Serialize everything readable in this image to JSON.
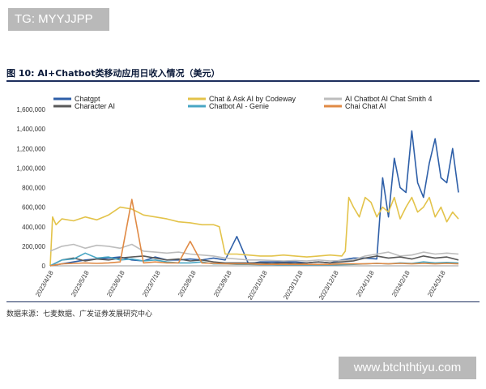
{
  "watermark_top": "TG: MYYJJPP",
  "watermark_bottom": "www.btchthtiyu.com",
  "figure_title": "图 10:  AI+Chatbot类移动应用日收入情况（美元）",
  "source_note": "数据来源：七麦数据、广发证券发展研究中心",
  "chart_data": {
    "type": "line",
    "title": "AI+Chatbot类移动应用日收入情况（美元）",
    "xlabel": "",
    "ylabel": "",
    "ylim": [
      0,
      1600000
    ],
    "y_ticks": [
      0,
      200000,
      400000,
      600000,
      800000,
      1000000,
      1200000,
      1400000,
      1600000
    ],
    "y_tick_labels": [
      "0",
      "200,000",
      "400,000",
      "600,000",
      "800,000",
      "1,000,000",
      "1,200,000",
      "1,400,000",
      "1,600,000"
    ],
    "x_tick_labels": [
      "2023/4/18",
      "2023/5/18",
      "2023/6/18",
      "2023/7/18",
      "2023/8/18",
      "2023/9/18",
      "2023/10/18",
      "2023/11/18",
      "2023/12/18",
      "2024/1/18",
      "2024/2/18",
      "2024/3/18"
    ],
    "x_range_days": [
      0,
      350
    ],
    "legend_position": "top",
    "series": [
      {
        "name": "Chatgpt",
        "color": "#2e5fa8",
        "x": [
          0,
          10,
          20,
          30,
          40,
          50,
          60,
          70,
          80,
          90,
          100,
          110,
          120,
          130,
          140,
          150,
          160,
          170,
          180,
          190,
          200,
          210,
          220,
          230,
          240,
          250,
          260,
          270,
          280,
          285,
          290,
          295,
          300,
          305,
          310,
          315,
          320,
          325,
          330,
          335,
          340,
          345,
          350
        ],
        "values": [
          0,
          20000,
          40000,
          60000,
          70000,
          80000,
          90000,
          60000,
          50000,
          90000,
          60000,
          60000,
          70000,
          60000,
          80000,
          60000,
          300000,
          20000,
          40000,
          40000,
          40000,
          40000,
          30000,
          40000,
          30000,
          60000,
          80000,
          80000,
          70000,
          900000,
          500000,
          1100000,
          800000,
          750000,
          1380000,
          850000,
          700000,
          1050000,
          1300000,
          900000,
          850000,
          1200000,
          750000
        ]
      },
      {
        "name": "Chat & Ask AI by Codeway",
        "color": "#e3c34a",
        "x": [
          0,
          2,
          5,
          10,
          20,
          30,
          40,
          50,
          60,
          70,
          80,
          90,
          100,
          110,
          120,
          130,
          140,
          145,
          150,
          160,
          170,
          180,
          190,
          200,
          210,
          220,
          230,
          240,
          250,
          253,
          256,
          260,
          265,
          270,
          275,
          280,
          285,
          290,
          295,
          300,
          305,
          310,
          315,
          320,
          325,
          330,
          335,
          340,
          345,
          350
        ],
        "values": [
          0,
          500000,
          420000,
          480000,
          460000,
          500000,
          470000,
          520000,
          600000,
          580000,
          520000,
          500000,
          480000,
          450000,
          440000,
          420000,
          420000,
          400000,
          120000,
          120000,
          110000,
          100000,
          100000,
          110000,
          100000,
          90000,
          100000,
          110000,
          100000,
          150000,
          700000,
          600000,
          500000,
          700000,
          650000,
          500000,
          600000,
          550000,
          700000,
          480000,
          600000,
          700000,
          550000,
          600000,
          700000,
          500000,
          600000,
          450000,
          550000,
          480000
        ]
      },
      {
        "name": "AI Chatbot AI Chat Smith 4",
        "color": "#bdbdbd",
        "x": [
          0,
          10,
          20,
          30,
          40,
          50,
          60,
          70,
          80,
          90,
          100,
          110,
          120,
          130,
          140,
          150,
          160,
          170,
          180,
          190,
          200,
          210,
          220,
          230,
          240,
          250,
          260,
          270,
          280,
          290,
          300,
          310,
          320,
          330,
          340,
          350
        ],
        "values": [
          150000,
          200000,
          220000,
          180000,
          210000,
          200000,
          180000,
          220000,
          150000,
          140000,
          130000,
          140000,
          120000,
          110000,
          100000,
          80000,
          70000,
          60000,
          60000,
          55000,
          50000,
          55000,
          50000,
          60000,
          50000,
          55000,
          60000,
          100000,
          120000,
          140000,
          100000,
          110000,
          140000,
          120000,
          130000,
          120000
        ]
      },
      {
        "name": "Character AI",
        "color": "#595959",
        "x": [
          0,
          10,
          20,
          30,
          40,
          50,
          60,
          70,
          80,
          90,
          100,
          110,
          120,
          130,
          140,
          150,
          160,
          170,
          180,
          190,
          200,
          210,
          220,
          230,
          240,
          250,
          260,
          270,
          280,
          290,
          300,
          310,
          320,
          330,
          340,
          350
        ],
        "values": [
          0,
          60000,
          80000,
          50000,
          70000,
          60000,
          80000,
          90000,
          100000,
          80000,
          60000,
          70000,
          50000,
          60000,
          40000,
          30000,
          30000,
          30000,
          30000,
          25000,
          30000,
          25000,
          30000,
          40000,
          30000,
          40000,
          50000,
          80000,
          100000,
          80000,
          90000,
          70000,
          100000,
          80000,
          90000,
          60000
        ]
      },
      {
        "name": "Chatbot AI - Genie",
        "color": "#48a6c4",
        "x": [
          0,
          10,
          20,
          30,
          40,
          50,
          60,
          70,
          80,
          90,
          100,
          110,
          120,
          130,
          140,
          150,
          160,
          170,
          180,
          190,
          200,
          210,
          220,
          230,
          240,
          250,
          260,
          270,
          280,
          290,
          300,
          310,
          320,
          330,
          340,
          350
        ],
        "values": [
          0,
          60000,
          70000,
          130000,
          80000,
          90000,
          60000,
          70000,
          50000,
          60000,
          40000,
          30000,
          30000,
          40000,
          20000,
          20000,
          15000,
          15000,
          12000,
          12000,
          10000,
          12000,
          10000,
          12000,
          10000,
          12000,
          15000,
          20000,
          25000,
          20000,
          30000,
          25000,
          40000,
          30000,
          35000,
          30000
        ]
      },
      {
        "name": "Chai Chat AI",
        "color": "#e08a45",
        "x": [
          0,
          10,
          20,
          30,
          40,
          50,
          60,
          70,
          80,
          90,
          100,
          110,
          120,
          130,
          140,
          150,
          160,
          170,
          180,
          190,
          200,
          210,
          220,
          230,
          240,
          250,
          260,
          270,
          280,
          290,
          300,
          310,
          320,
          330,
          340,
          350
        ],
        "values": [
          0,
          20000,
          25000,
          30000,
          25000,
          30000,
          40000,
          680000,
          30000,
          40000,
          30000,
          30000,
          250000,
          30000,
          25000,
          20000,
          20000,
          20000,
          15000,
          15000,
          15000,
          15000,
          15000,
          15000,
          15000,
          20000,
          20000,
          20000,
          25000,
          20000,
          25000,
          20000,
          25000,
          20000,
          25000,
          20000
        ]
      }
    ]
  }
}
